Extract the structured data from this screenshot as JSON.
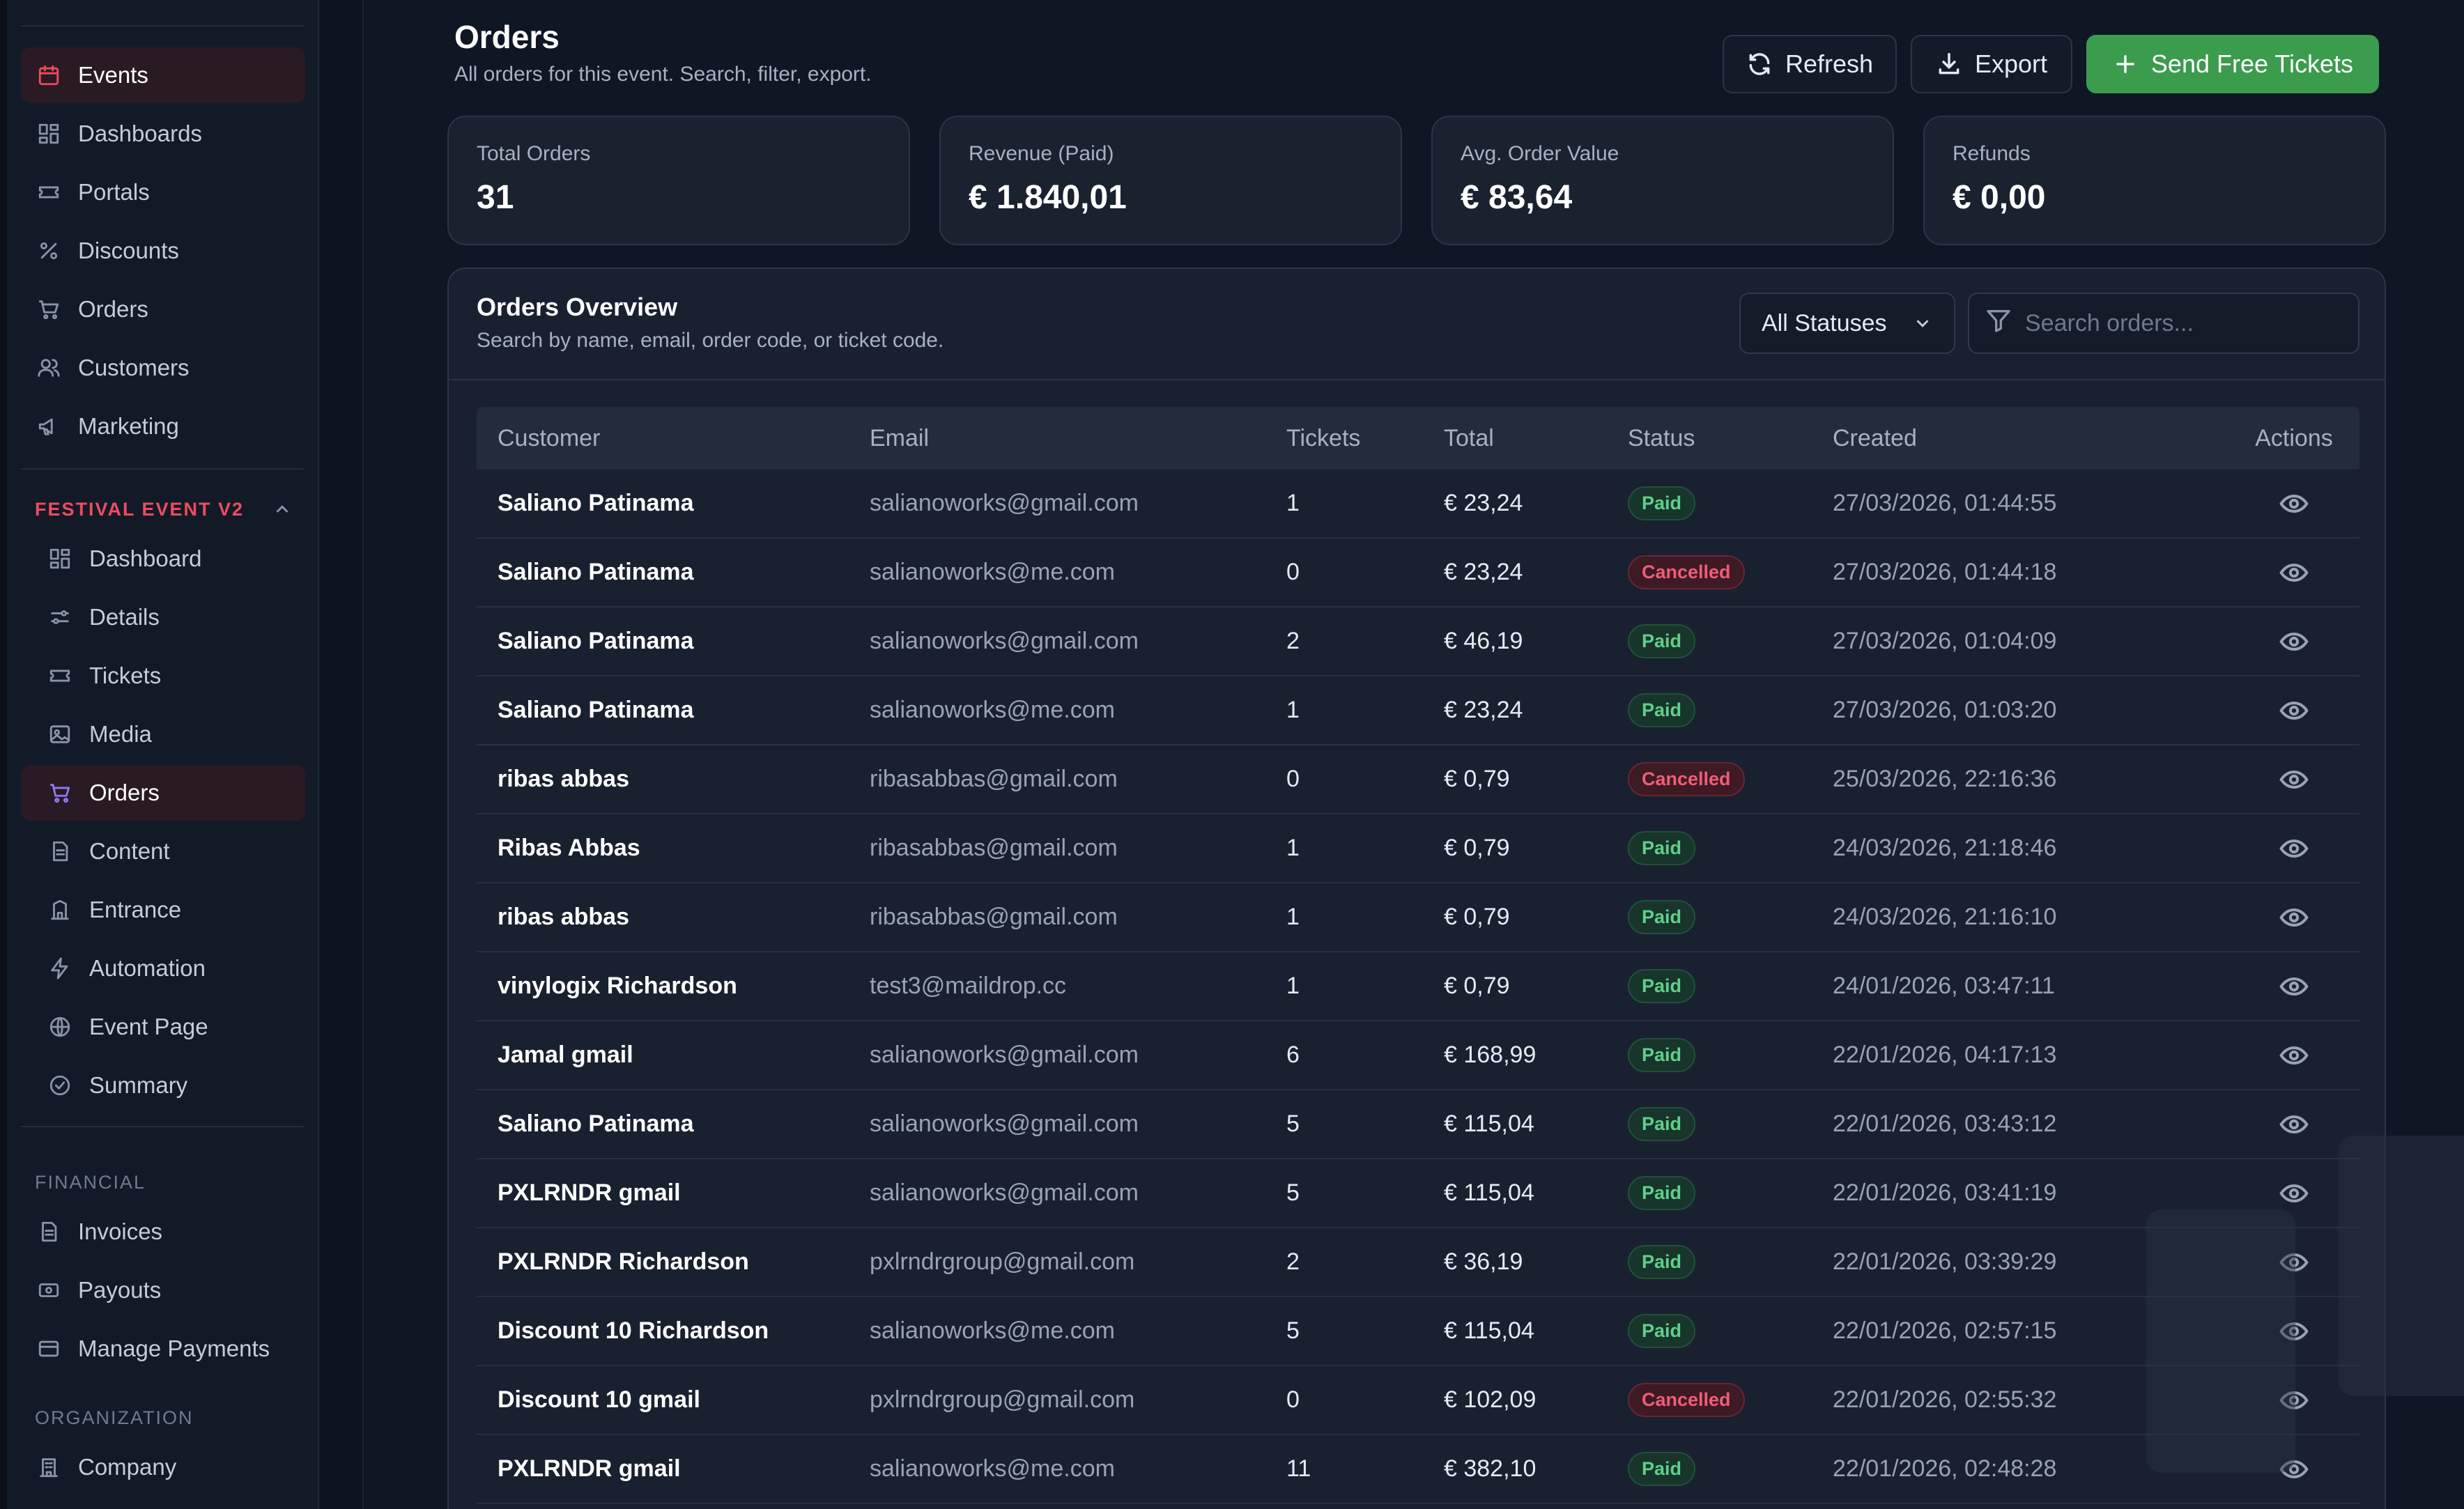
{
  "sidebar": {
    "main_items": [
      {
        "label": "Events",
        "icon": "calendar-icon"
      },
      {
        "label": "Dashboards",
        "icon": "dashboard-icon"
      },
      {
        "label": "Portals",
        "icon": "ticket-icon"
      },
      {
        "label": "Discounts",
        "icon": "percent-icon"
      },
      {
        "label": "Orders",
        "icon": "cart-icon"
      },
      {
        "label": "Customers",
        "icon": "users-icon"
      },
      {
        "label": "Marketing",
        "icon": "megaphone-icon"
      }
    ],
    "event_section": "FESTIVAL EVENT V2",
    "event_items": [
      {
        "label": "Dashboard",
        "icon": "dashboard-icon"
      },
      {
        "label": "Details",
        "icon": "sliders-icon"
      },
      {
        "label": "Tickets",
        "icon": "ticket-icon"
      },
      {
        "label": "Media",
        "icon": "image-icon"
      },
      {
        "label": "Orders",
        "icon": "cart-icon"
      },
      {
        "label": "Content",
        "icon": "document-icon"
      },
      {
        "label": "Entrance",
        "icon": "building-icon"
      },
      {
        "label": "Automation",
        "icon": "lightning-icon"
      },
      {
        "label": "Event Page",
        "icon": "globe-icon"
      },
      {
        "label": "Summary",
        "icon": "check-circle-icon"
      }
    ],
    "financial_section": "FINANCIAL",
    "financial_items": [
      {
        "label": "Invoices",
        "icon": "document-icon"
      },
      {
        "label": "Payouts",
        "icon": "payout-icon"
      },
      {
        "label": "Manage Payments",
        "icon": "credit-card-icon"
      }
    ],
    "organization_section": "ORGANIZATION",
    "organization_items": [
      {
        "label": "Company",
        "icon": "building-icon"
      }
    ]
  },
  "header": {
    "title": "Orders",
    "subtitle": "All orders for this event. Search, filter, export.",
    "refresh_label": "Refresh",
    "export_label": "Export",
    "send_label": "Send Free Tickets"
  },
  "stats": [
    {
      "label": "Total Orders",
      "value": "31"
    },
    {
      "label": "Revenue (Paid)",
      "value": "€ 1.840,01"
    },
    {
      "label": "Avg. Order Value",
      "value": "€ 83,64"
    },
    {
      "label": "Refunds",
      "value": "€ 0,00"
    }
  ],
  "overview": {
    "title": "Orders Overview",
    "subtitle": "Search by name, email, order code, or ticket code.",
    "status_filter": "All Statuses",
    "search_placeholder": "Search orders..."
  },
  "table": {
    "columns": [
      "Customer",
      "Email",
      "Tickets",
      "Total",
      "Status",
      "Created",
      "Actions"
    ],
    "rows": [
      {
        "customer": "Saliano Patinama",
        "email": "salianoworks@gmail.com",
        "tickets": "1",
        "total": "€ 23,24",
        "status": "Paid",
        "created": "27/03/2026, 01:44:55"
      },
      {
        "customer": "Saliano Patinama",
        "email": "salianoworks@me.com",
        "tickets": "0",
        "total": "€ 23,24",
        "status": "Cancelled",
        "created": "27/03/2026, 01:44:18"
      },
      {
        "customer": "Saliano Patinama",
        "email": "salianoworks@gmail.com",
        "tickets": "2",
        "total": "€ 46,19",
        "status": "Paid",
        "created": "27/03/2026, 01:04:09"
      },
      {
        "customer": "Saliano Patinama",
        "email": "salianoworks@me.com",
        "tickets": "1",
        "total": "€ 23,24",
        "status": "Paid",
        "created": "27/03/2026, 01:03:20"
      },
      {
        "customer": "ribas abbas",
        "email": "ribasabbas@gmail.com",
        "tickets": "0",
        "total": "€ 0,79",
        "status": "Cancelled",
        "created": "25/03/2026, 22:16:36"
      },
      {
        "customer": "Ribas Abbas",
        "email": "ribasabbas@gmail.com",
        "tickets": "1",
        "total": "€ 0,79",
        "status": "Paid",
        "created": "24/03/2026, 21:18:46"
      },
      {
        "customer": "ribas abbas",
        "email": "ribasabbas@gmail.com",
        "tickets": "1",
        "total": "€ 0,79",
        "status": "Paid",
        "created": "24/03/2026, 21:16:10"
      },
      {
        "customer": "vinylogix Richardson",
        "email": "test3@maildrop.cc",
        "tickets": "1",
        "total": "€ 0,79",
        "status": "Paid",
        "created": "24/01/2026, 03:47:11"
      },
      {
        "customer": "Jamal gmail",
        "email": "salianoworks@gmail.com",
        "tickets": "6",
        "total": "€ 168,99",
        "status": "Paid",
        "created": "22/01/2026, 04:17:13"
      },
      {
        "customer": "Saliano Patinama",
        "email": "salianoworks@gmail.com",
        "tickets": "5",
        "total": "€ 115,04",
        "status": "Paid",
        "created": "22/01/2026, 03:43:12"
      },
      {
        "customer": "PXLRNDR gmail",
        "email": "salianoworks@gmail.com",
        "tickets": "5",
        "total": "€ 115,04",
        "status": "Paid",
        "created": "22/01/2026, 03:41:19"
      },
      {
        "customer": "PXLRNDR Richardson",
        "email": "pxlrndrgroup@gmail.com",
        "tickets": "2",
        "total": "€ 36,19",
        "status": "Paid",
        "created": "22/01/2026, 03:39:29"
      },
      {
        "customer": "Discount 10 Richardson",
        "email": "salianoworks@me.com",
        "tickets": "5",
        "total": "€ 115,04",
        "status": "Paid",
        "created": "22/01/2026, 02:57:15"
      },
      {
        "customer": "Discount 10 gmail",
        "email": "pxlrndrgroup@gmail.com",
        "tickets": "0",
        "total": "€ 102,09",
        "status": "Cancelled",
        "created": "22/01/2026, 02:55:32"
      },
      {
        "customer": "PXLRNDR gmail",
        "email": "salianoworks@me.com",
        "tickets": "11",
        "total": "€ 382,10",
        "status": "Paid",
        "created": "22/01/2026, 02:48:28"
      }
    ]
  },
  "colors": {
    "accent_red": "#ef4b5f",
    "primary_green": "#3a9c4c",
    "paid_text": "#5fd08a",
    "cancelled_text": "#f05d75"
  }
}
